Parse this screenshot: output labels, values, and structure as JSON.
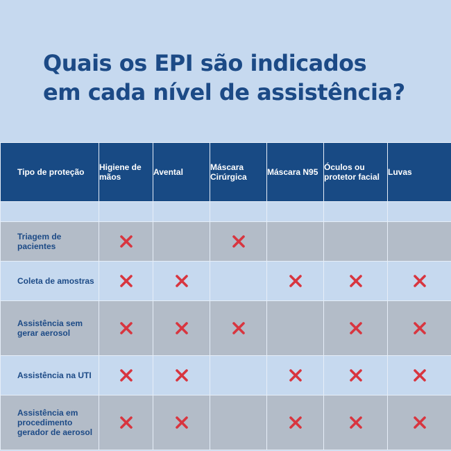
{
  "title": {
    "line1": "Quais os EPI são indicados",
    "line2": "em cada nível de assistência?"
  },
  "table": {
    "headers": [
      "Tipo de proteção",
      "Higiene de mãos",
      "Avental",
      "Máscara Cirúrgica",
      "Máscara N95",
      "Óculos ou protetor facial",
      "Luvas"
    ],
    "rows": [
      {
        "label": "Triagem de pacientes",
        "marks": [
          true,
          false,
          true,
          false,
          false,
          false
        ]
      },
      {
        "label": "Coleta de amostras",
        "marks": [
          true,
          true,
          false,
          true,
          true,
          true
        ]
      },
      {
        "label": "Assistência sem gerar aerosol",
        "marks": [
          true,
          true,
          true,
          false,
          true,
          true
        ]
      },
      {
        "label": "Assistência na UTI",
        "marks": [
          true,
          true,
          false,
          true,
          true,
          true
        ]
      },
      {
        "label": "Assistência em procedimento gerador de aerosol",
        "marks": [
          true,
          true,
          false,
          true,
          true,
          true
        ]
      }
    ]
  },
  "colors": {
    "header_bg": "#184a84",
    "title": "#1c4a86",
    "mark": "#d8353f",
    "row_gray": "#b3bcc8",
    "row_blue": "#c6d9ef"
  },
  "icons": {
    "mark": "x-mark-icon"
  }
}
